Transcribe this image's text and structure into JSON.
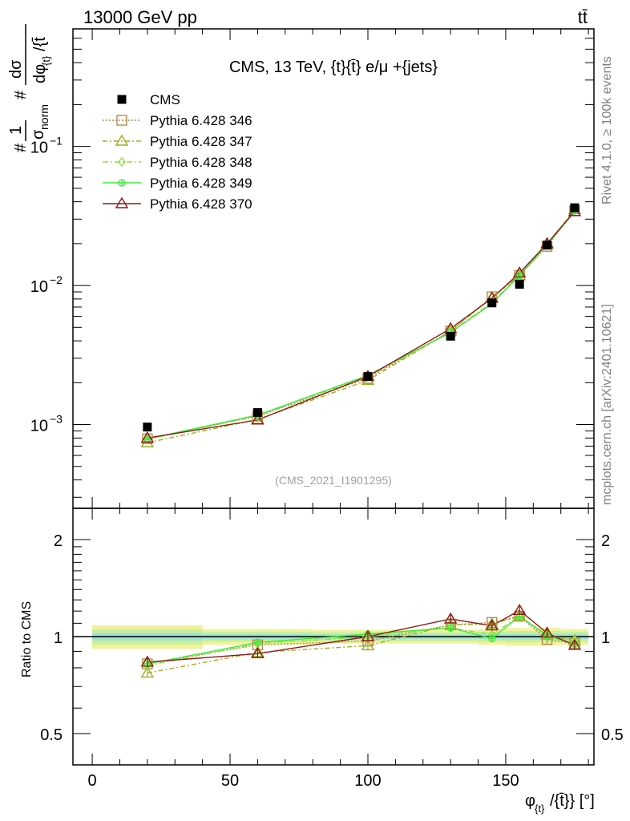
{
  "header": {
    "left": "13000 GeV pp",
    "right": "tt̄"
  },
  "side_labels": {
    "rivet": "Rivet 4.1.0, ≥ 100k events",
    "mcplots": "mcplots.cern.ch [arXiv:2401.10621]"
  },
  "chart_data": {
    "type": "line",
    "title": "CMS, 13 TeV, {t}{t̄} e/μ +{jets}",
    "watermark": "(CMS_2021_I1901295)",
    "xlabel": "φ_{t}/{t̄}} [°]",
    "ylabel_main": "# 1/σ_norm # dσ/dφ_{t}/{t̄}}",
    "ylabel_ratio": "Ratio to CMS",
    "xlim": [
      -7,
      182
    ],
    "ylim_main": [
      0.00025,
      0.7
    ],
    "ylim_ratio": [
      0.4,
      2.5
    ],
    "yscale_main": "log",
    "yscale_ratio": "log",
    "x_ticks": [
      "0",
      "50",
      "100",
      "150"
    ],
    "y_ticks_main": [
      {
        "value": 0.1,
        "mantissa": "10",
        "exp": "−1"
      },
      {
        "value": 0.01,
        "mantissa": "10",
        "exp": "−2"
      },
      {
        "value": 0.001,
        "mantissa": "10",
        "exp": "−3"
      }
    ],
    "y_ticks_ratio": [
      "2",
      "1",
      "0.5"
    ],
    "x": [
      20,
      60,
      100,
      130,
      145,
      155,
      165,
      175
    ],
    "data": {
      "name": "CMS",
      "values": [
        0.00096,
        0.00122,
        0.00222,
        0.00432,
        0.0075,
        0.0102,
        0.0195,
        0.0362
      ],
      "band_halfwidth": [
        0.06,
        0.04,
        0.035,
        0.035,
        0.04,
        0.045,
        0.045,
        0.04
      ]
    },
    "series": [
      {
        "name": "Pythia 6.428 346",
        "color": "#b78a4d",
        "dash": "2,2",
        "marker": "square",
        "values": [
          0.00079,
          0.00115,
          0.00215,
          0.0047,
          0.0083,
          0.0118,
          0.0191,
          0.0345
        ]
      },
      {
        "name": "Pythia 6.428 347",
        "color": "#9caf1e",
        "dash": "6,3,2,3",
        "marker": "triangle",
        "values": [
          0.00074,
          0.00109,
          0.00208,
          0.0047,
          0.0082,
          0.0118,
          0.0197,
          0.0352
        ]
      },
      {
        "name": "Pythia 6.428 348",
        "color": "#8ee03a",
        "dash": "7,3,2,3",
        "marker": "diamond",
        "values": [
          0.00078,
          0.00116,
          0.00222,
          0.0046,
          0.0076,
          0.0118,
          0.0197,
          0.0352
        ]
      },
      {
        "name": "Pythia 6.428 349",
        "color": "#3ee83a",
        "dash": "",
        "marker": "cross",
        "values": [
          0.00079,
          0.00117,
          0.00226,
          0.0046,
          0.0074,
          0.0118,
          0.0196,
          0.0344
        ]
      },
      {
        "name": "Pythia 6.428 370",
        "color": "#8e1818",
        "dash": "",
        "marker": "triangle",
        "values": [
          0.0008,
          0.00108,
          0.00222,
          0.0049,
          0.0081,
          0.0123,
          0.02,
          0.034
        ]
      }
    ]
  }
}
